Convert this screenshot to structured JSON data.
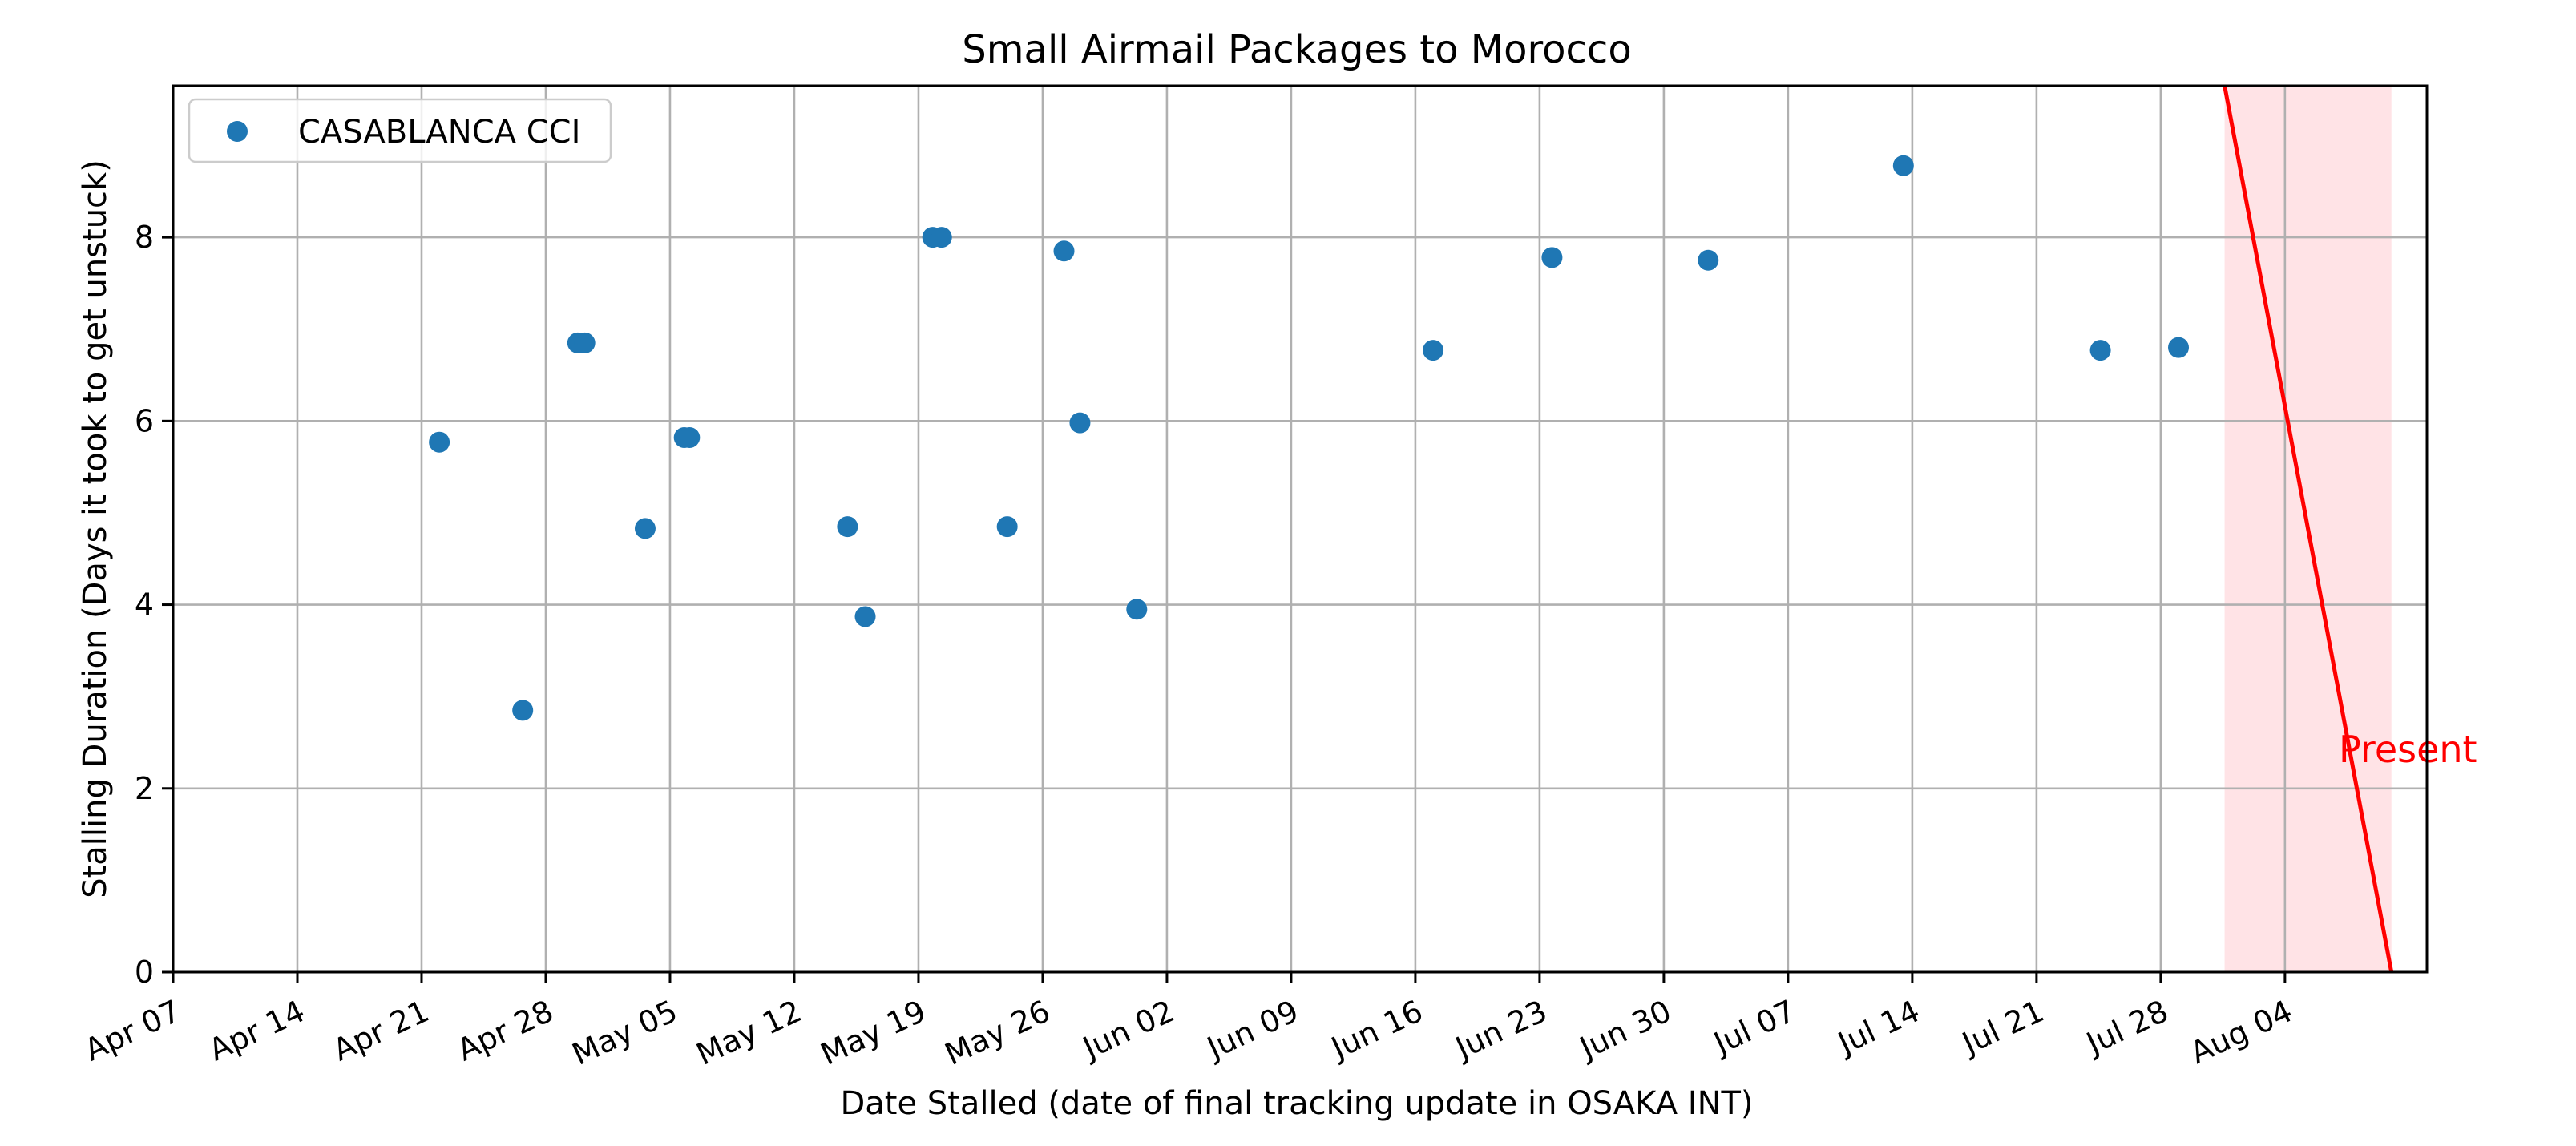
{
  "chart_data": {
    "type": "scatter",
    "title": "Small Airmail Packages to Morocco",
    "xlabel": "Date Stalled (date of final tracking update in OSAKA INT)",
    "ylabel": "Stalling Duration (Days it took to get unstuck)",
    "xlim": [
      "Apr 07",
      "Aug 12"
    ],
    "ylim": [
      0,
      9.65
    ],
    "x_ticks": [
      "Apr 07",
      "Apr 14",
      "Apr 21",
      "Apr 28",
      "May 05",
      "May 12",
      "May 19",
      "May 26",
      "Jun 02",
      "Jun 09",
      "Jun 16",
      "Jun 23",
      "Jun 30",
      "Jul 07",
      "Jul 14",
      "Jul 21",
      "Jul 28",
      "Aug 04"
    ],
    "y_ticks": [
      "0",
      "2",
      "4",
      "6",
      "8"
    ],
    "grid": true,
    "legend_position": "top-left",
    "series": [
      {
        "name": "CASABLANCA CCI",
        "color": "#1f77b4",
        "points": [
          {
            "x": "Apr 22",
            "y": 5.77
          },
          {
            "x": "Apr 26.7",
            "y": 2.85
          },
          {
            "x": "Apr 29.8",
            "y": 6.85
          },
          {
            "x": "Apr 30.2",
            "y": 6.85
          },
          {
            "x": "May 3.6",
            "y": 4.83
          },
          {
            "x": "May 5.8",
            "y": 5.82
          },
          {
            "x": "May 6.1",
            "y": 5.82
          },
          {
            "x": "May 15",
            "y": 4.85
          },
          {
            "x": "May 16",
            "y": 3.87
          },
          {
            "x": "May 19.8",
            "y": 8.0
          },
          {
            "x": "May 20.3",
            "y": 8.0
          },
          {
            "x": "May 24",
            "y": 4.85
          },
          {
            "x": "May 27.2",
            "y": 7.85
          },
          {
            "x": "May 28.1",
            "y": 5.98
          },
          {
            "x": "May 31.3",
            "y": 3.95
          },
          {
            "x": "Jun 17",
            "y": 6.77
          },
          {
            "x": "Jun 23.7",
            "y": 7.78
          },
          {
            "x": "Jul 2.5",
            "y": 7.75
          },
          {
            "x": "Jul 13.5",
            "y": 8.78
          },
          {
            "x": "Jul 24.6",
            "y": 6.77
          },
          {
            "x": "Jul 29",
            "y": 6.8
          }
        ]
      }
    ],
    "present_marker": {
      "label": "Present",
      "color": "#ff0000",
      "line_top": {
        "x": "Jul 31.6",
        "y": 9.65
      },
      "line_bottom": {
        "x": "Aug 10",
        "y": 0
      },
      "shade_from": "Jul 31.6",
      "shade_to": "Aug 10",
      "shade_color": "#ffc0c8"
    }
  }
}
